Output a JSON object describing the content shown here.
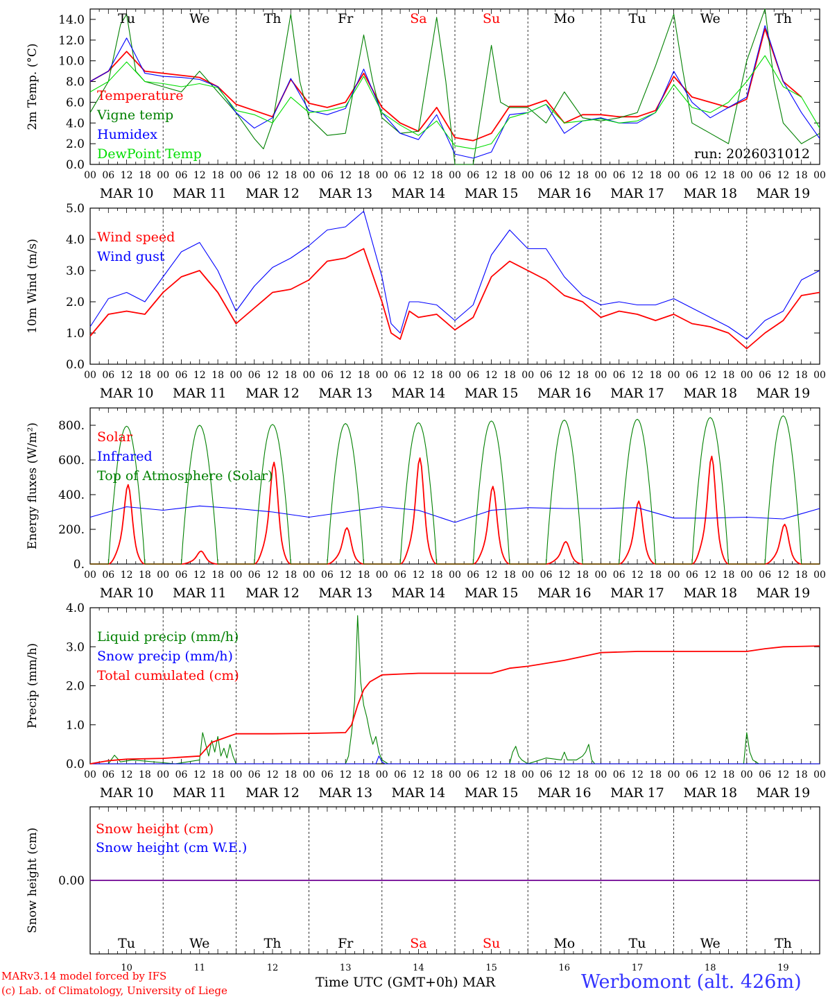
{
  "chart_data": [
    {
      "id": "temp",
      "type": "line",
      "ylabel": "2m Temp. (°C)",
      "ylim": [
        0,
        15
      ],
      "yticks": [
        0.0,
        2.0,
        4.0,
        6.0,
        8.0,
        10.0,
        12.0,
        14.0
      ],
      "ytick_labels": [
        "0.0",
        "2.0",
        "4.0",
        "6.0",
        "8.0",
        "10.0",
        "12.0",
        "14.0"
      ],
      "annotation": "run: 2026031012",
      "weekdays_top": [
        "Tu",
        "We",
        "Th",
        "Fr",
        "Sa",
        "Su",
        "Mo",
        "Tu",
        "We",
        "Th"
      ],
      "series": [
        {
          "name": "Temperature",
          "color": "#ff0000",
          "hours": [
            0,
            6,
            12,
            18,
            24,
            30,
            36,
            42,
            48,
            54,
            60,
            66,
            72,
            78,
            84,
            90,
            96,
            102,
            108,
            114,
            120,
            126,
            132,
            138,
            144,
            150,
            156,
            162,
            168,
            174,
            180,
            186,
            192,
            198,
            204,
            210,
            216,
            222,
            228,
            234
          ],
          "values": [
            8.0,
            9.0,
            10.9,
            9.0,
            8.8,
            8.6,
            8.4,
            7.5,
            5.8,
            5.2,
            4.6,
            8.2,
            5.9,
            5.5,
            6.0,
            8.8,
            5.5,
            4.0,
            3.2,
            5.5,
            2.6,
            2.3,
            3.0,
            5.6,
            5.6,
            6.2,
            4.0,
            4.8,
            4.8,
            4.6,
            4.6,
            5.2,
            8.5,
            6.5,
            6.0,
            5.5,
            6.3,
            13.1,
            8.0,
            6.5
          ]
        },
        {
          "name": "Vigne temp",
          "color": "#008000",
          "hours": [
            0,
            6,
            10,
            12,
            15,
            18,
            24,
            30,
            36,
            42,
            48,
            54,
            57,
            60,
            66,
            69,
            72,
            78,
            84,
            90,
            93,
            96,
            102,
            108,
            114,
            117,
            120,
            126,
            132,
            135,
            138,
            144,
            150,
            156,
            162,
            168,
            174,
            180,
            186,
            192,
            195,
            198,
            204,
            210,
            216,
            222,
            225,
            228,
            234,
            240
          ],
          "values": [
            5.0,
            8.0,
            13.5,
            14.5,
            9.0,
            8.0,
            7.5,
            7.0,
            9.0,
            7.0,
            5.0,
            2.5,
            1.5,
            4.0,
            14.5,
            8.0,
            4.5,
            2.8,
            3.0,
            12.5,
            8.0,
            4.5,
            3.0,
            3.2,
            14.2,
            8.0,
            0.0,
            0.0,
            11.5,
            6.0,
            5.5,
            5.5,
            4.0,
            7.0,
            4.5,
            4.2,
            4.5,
            5.0,
            9.5,
            14.5,
            9.0,
            4.0,
            3.0,
            2.0,
            10.0,
            15.0,
            8.0,
            4.0,
            2.0,
            3.0
          ]
        },
        {
          "name": "Humidex",
          "color": "#0000ff",
          "hours": [
            0,
            6,
            12,
            18,
            24,
            30,
            36,
            42,
            48,
            54,
            60,
            66,
            72,
            78,
            84,
            90,
            96,
            102,
            108,
            114,
            120,
            126,
            132,
            138,
            144,
            150,
            156,
            162,
            168,
            174,
            180,
            186,
            192,
            198,
            204,
            210,
            216,
            222,
            228,
            234,
            240
          ],
          "values": [
            8.0,
            9.0,
            12.2,
            8.8,
            8.5,
            8.4,
            8.2,
            7.5,
            5.0,
            3.5,
            4.5,
            8.3,
            5.2,
            4.8,
            5.4,
            9.2,
            5.0,
            3.0,
            2.4,
            4.8,
            1.0,
            0.6,
            1.2,
            4.8,
            5.0,
            5.8,
            3.0,
            4.2,
            4.5,
            4.0,
            4.0,
            5.0,
            9.0,
            6.0,
            4.5,
            5.5,
            6.5,
            13.4,
            8.0,
            5.0,
            2.5
          ]
        },
        {
          "name": "DewPoint Temp",
          "color": "#00dd00",
          "hours": [
            0,
            6,
            12,
            18,
            24,
            30,
            36,
            42,
            48,
            54,
            60,
            66,
            72,
            78,
            84,
            90,
            96,
            102,
            108,
            114,
            120,
            126,
            132,
            138,
            144,
            150,
            156,
            162,
            168,
            174,
            180,
            186,
            192,
            198,
            204,
            210,
            216,
            222,
            228,
            234,
            240
          ],
          "values": [
            7.0,
            8.0,
            9.9,
            8.0,
            7.8,
            7.5,
            7.8,
            7.4,
            5.2,
            4.8,
            4.0,
            6.5,
            5.0,
            5.2,
            5.6,
            8.5,
            5.0,
            3.8,
            2.8,
            4.2,
            1.8,
            1.5,
            2.0,
            4.5,
            5.0,
            5.8,
            4.0,
            4.2,
            4.4,
            4.0,
            4.2,
            5.0,
            7.7,
            5.5,
            5.0,
            6.0,
            8.0,
            10.5,
            7.5,
            6.5,
            3.5
          ]
        }
      ]
    },
    {
      "id": "wind",
      "type": "line",
      "ylabel": "10m Wind (m/s)",
      "ylim": [
        0,
        5
      ],
      "yticks": [
        0.0,
        1.0,
        2.0,
        3.0,
        4.0,
        5.0
      ],
      "ytick_labels": [
        "0.0",
        "1.0",
        "2.0",
        "3.0",
        "4.0",
        "5.0"
      ],
      "series": [
        {
          "name": "Wind speed",
          "color": "#ff0000",
          "hours": [
            0,
            6,
            12,
            18,
            24,
            30,
            36,
            42,
            48,
            54,
            60,
            66,
            72,
            78,
            84,
            90,
            96,
            99,
            102,
            105,
            108,
            114,
            120,
            126,
            132,
            138,
            144,
            150,
            156,
            162,
            168,
            174,
            180,
            186,
            192,
            198,
            204,
            210,
            216,
            222,
            228,
            234,
            240
          ],
          "values": [
            0.9,
            1.6,
            1.7,
            1.6,
            2.3,
            2.8,
            3.0,
            2.3,
            1.3,
            1.8,
            2.3,
            2.4,
            2.7,
            3.3,
            3.4,
            3.7,
            2.0,
            1.0,
            0.8,
            1.7,
            1.5,
            1.6,
            1.1,
            1.5,
            2.8,
            3.3,
            3.0,
            2.7,
            2.2,
            2.0,
            1.5,
            1.7,
            1.6,
            1.4,
            1.6,
            1.3,
            1.2,
            1.0,
            0.5,
            1.0,
            1.4,
            2.2,
            2.3
          ]
        },
        {
          "name": "Wind gust",
          "color": "#0000ff",
          "hours": [
            0,
            6,
            12,
            18,
            24,
            30,
            36,
            42,
            48,
            54,
            60,
            66,
            72,
            78,
            84,
            90,
            96,
            99,
            102,
            105,
            108,
            114,
            120,
            126,
            132,
            138,
            144,
            150,
            156,
            162,
            168,
            174,
            180,
            186,
            192,
            198,
            204,
            210,
            216,
            222,
            228,
            234,
            240
          ],
          "values": [
            1.2,
            2.1,
            2.3,
            2.0,
            2.8,
            3.6,
            3.9,
            3.0,
            1.7,
            2.5,
            3.1,
            3.4,
            3.8,
            4.3,
            4.4,
            4.9,
            2.8,
            1.3,
            1.0,
            2.0,
            2.0,
            1.9,
            1.4,
            1.9,
            3.5,
            4.3,
            3.7,
            3.7,
            2.8,
            2.2,
            1.9,
            2.0,
            1.9,
            1.9,
            2.1,
            1.8,
            1.5,
            1.2,
            0.8,
            1.4,
            1.7,
            2.7,
            3.0
          ]
        }
      ]
    },
    {
      "id": "energy",
      "type": "line",
      "ylabel": "Energy fluxes (W/m²)",
      "ylim": [
        0,
        900
      ],
      "yticks": [
        0,
        200,
        400,
        600,
        800
      ],
      "ytick_labels": [
        "0.",
        "200.",
        "400.",
        "600.",
        "800."
      ],
      "series": [
        {
          "name": "Solar",
          "color": "#ff0000",
          "daily_peaks": [
            460,
            75,
            590,
            210,
            615,
            450,
            130,
            365,
            625,
            230
          ]
        },
        {
          "name": "Infrared",
          "color": "#0000ff",
          "hours": [
            0,
            12,
            24,
            36,
            48,
            60,
            72,
            84,
            96,
            108,
            120,
            132,
            144,
            156,
            168,
            180,
            192,
            204,
            216,
            228,
            240
          ],
          "values": [
            270,
            330,
            310,
            335,
            320,
            300,
            270,
            300,
            330,
            310,
            240,
            310,
            325,
            320,
            320,
            325,
            265,
            265,
            270,
            260,
            320
          ]
        },
        {
          "name": "Top of Atmosphere (Solar)",
          "color": "#008000",
          "daily_peaks": [
            795,
            800,
            805,
            810,
            815,
            825,
            830,
            835,
            845,
            855
          ]
        }
      ]
    },
    {
      "id": "precip",
      "type": "line",
      "ylabel": "Precip (mm/h)",
      "ylim": [
        0,
        4
      ],
      "yticks": [
        0.0,
        1.0,
        2.0,
        3.0,
        4.0
      ],
      "ytick_labels": [
        "0.0",
        "1.0",
        "2.0",
        "3.0",
        "4.0"
      ],
      "series": [
        {
          "name": "Liquid precip (mm/h)",
          "color": "#008000",
          "hours": [
            0,
            6,
            8,
            10,
            14,
            28,
            36,
            37,
            38,
            39,
            40,
            41,
            42,
            43,
            44,
            45,
            46,
            47,
            48,
            84,
            85,
            86,
            87,
            88,
            89,
            90,
            91,
            92,
            93,
            94,
            95,
            96,
            98,
            100,
            138,
            139,
            140,
            141,
            142,
            144,
            150,
            155,
            156,
            157,
            160,
            162,
            163,
            164,
            165,
            166,
            215,
            216,
            217,
            218,
            220,
            240
          ],
          "values": [
            0,
            0,
            0.22,
            0.05,
            0.1,
            0,
            0.1,
            0.8,
            0.5,
            0.2,
            0.6,
            0.3,
            0.7,
            0.2,
            0.4,
            0.15,
            0.5,
            0.2,
            0,
            0,
            0.2,
            0.8,
            1.6,
            3.8,
            2.1,
            1.5,
            1.2,
            0.8,
            0.5,
            0.7,
            0.3,
            0.1,
            0,
            0,
            0,
            0.3,
            0.45,
            0.2,
            0.1,
            0,
            0.15,
            0.1,
            0.3,
            0.1,
            0.1,
            0.2,
            0.3,
            0.5,
            0.1,
            0,
            0,
            0.8,
            0.3,
            0.1,
            0,
            0
          ]
        },
        {
          "name": "Snow precip (mm/h)",
          "color": "#0000ff",
          "hours": [
            0,
            94,
            95,
            96,
            97,
            240
          ],
          "values": [
            0,
            0,
            0.2,
            0.05,
            0,
            0
          ]
        },
        {
          "name": "Total cumulated (cm)",
          "color": "#ff0000",
          "hours": [
            0,
            6,
            12,
            24,
            36,
            40,
            48,
            60,
            72,
            84,
            86,
            88,
            90,
            92,
            96,
            102,
            108,
            120,
            132,
            138,
            144,
            156,
            168,
            180,
            192,
            204,
            216,
            222,
            228,
            240
          ],
          "values": [
            0,
            0.08,
            0.12,
            0.14,
            0.2,
            0.55,
            0.77,
            0.77,
            0.78,
            0.8,
            1.0,
            1.5,
            1.9,
            2.1,
            2.28,
            2.3,
            2.32,
            2.32,
            2.32,
            2.45,
            2.5,
            2.65,
            2.85,
            2.88,
            2.88,
            2.88,
            2.88,
            2.95,
            3.0,
            3.02
          ]
        }
      ]
    },
    {
      "id": "snow",
      "type": "line",
      "ylabel": "Snow height (cm)",
      "ylim": [
        -1,
        1
      ],
      "yticks": [
        0.0
      ],
      "ytick_labels": [
        "0.00"
      ],
      "weekdays_bottom": [
        "Tu",
        "We",
        "Th",
        "Fr",
        "Sa",
        "Su",
        "Mo",
        "Tu",
        "We",
        "Th"
      ],
      "day_numbers": [
        "10",
        "11",
        "12",
        "13",
        "14",
        "15",
        "16",
        "17",
        "18",
        "19"
      ],
      "series": [
        {
          "name": "Snow height (cm)",
          "color": "#ff0000",
          "hours": [
            0,
            240
          ],
          "values": [
            0,
            0
          ]
        },
        {
          "name": "Snow height (cm W.E.)",
          "color": "#0000ff",
          "hours": [
            0,
            240
          ],
          "values": [
            0,
            0
          ]
        }
      ]
    }
  ],
  "axis": {
    "hour_labels": [
      "00",
      "06",
      "12",
      "18"
    ],
    "end_label": "00",
    "date_labels": [
      "MAR 10",
      "MAR 11",
      "MAR 12",
      "MAR 13",
      "MAR 14",
      "MAR 15",
      "MAR 16",
      "MAR 17",
      "MAR 18",
      "MAR 19"
    ],
    "weekend_days": [
      "Sa",
      "Su"
    ],
    "xlabel": "Time UTC (GMT+0h)",
    "xlabel_month": "MAR"
  },
  "footer": {
    "model": "MARv3.14 model forced by IFS",
    "copyright": "(c) Lab. of Climatology, University of Liege",
    "station": "Werbomont (alt. 426m)"
  },
  "colors": {
    "red": "#ff0000",
    "green": "#008000",
    "blue": "#0000ff",
    "lightgreen": "#00dd00",
    "station": "#3333ff"
  }
}
